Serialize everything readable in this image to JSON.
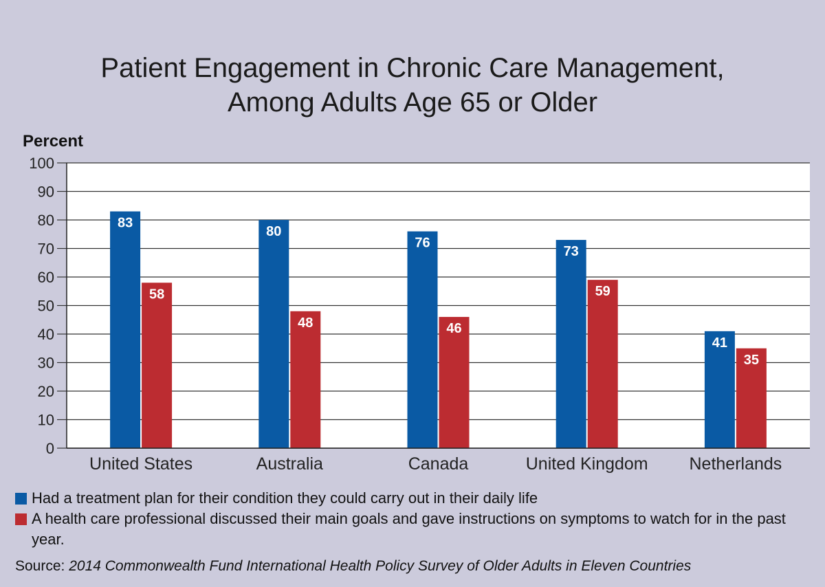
{
  "chart_data": {
    "type": "bar",
    "title_lines": [
      "Patient Engagement in Chronic Care Management,",
      "Among Adults Age 65 or Older"
    ],
    "ylabel": "Percent",
    "xlabel": "",
    "ylim": [
      0,
      100
    ],
    "yticks": [
      0,
      10,
      20,
      30,
      40,
      50,
      60,
      70,
      80,
      90,
      100
    ],
    "grid": true,
    "legend_position": "bottom",
    "categories": [
      "United States",
      "Australia",
      "Canada",
      "United Kingdom",
      "Netherlands"
    ],
    "series": [
      {
        "name": "Had a treatment plan for their condition they could carry out in their daily life",
        "color": "#0a5aa4",
        "values": [
          83,
          80,
          76,
          73,
          41
        ]
      },
      {
        "name": "A health care professional discussed their main goals and gave instructions on symptoms to watch for in the past year.",
        "color": "#bc2c31",
        "values": [
          58,
          48,
          46,
          59,
          35
        ]
      }
    ],
    "source_prefix": "Source: ",
    "source_title": "2014 Commonwealth Fund International Health Policy Survey of Older Adults in Eleven Countries"
  }
}
